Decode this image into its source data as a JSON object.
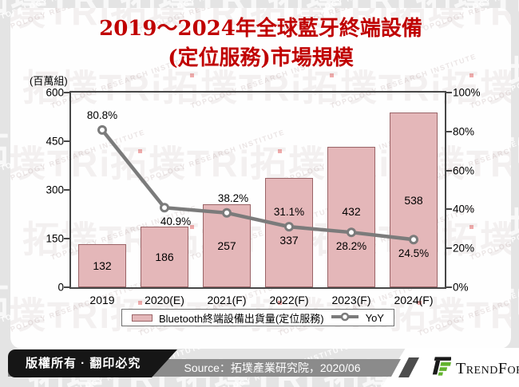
{
  "title": {
    "line1": "2019～2024年全球藍牙終端設備",
    "line2": "(定位服務)市場規模"
  },
  "watermark": {
    "big": "拓墣TRi",
    "sub": "TOPOLOGY RESEARCH INSTITUTE"
  },
  "chart_data": {
    "type": "bar",
    "title": "2019～2024年全球藍牙終端設備(定位服務)市場規模",
    "categories": [
      "2019",
      "2020(E)",
      "2021(F)",
      "2022(F)",
      "2023(F)",
      "2024(F)"
    ],
    "series": [
      {
        "name": "Bluetooth終端設備出貨量(定位服務)",
        "type": "bar",
        "axis": "left",
        "values": [
          132,
          186,
          257,
          337,
          432,
          538
        ]
      },
      {
        "name": "YoY",
        "type": "line",
        "axis": "right",
        "values": [
          80.8,
          40.9,
          38.2,
          31.1,
          28.2,
          24.5
        ],
        "point_labels": [
          "80.8%",
          "40.9%",
          "38.2%",
          "31.1%",
          "28.2%",
          "24.5%"
        ],
        "label_side": [
          "above",
          "below",
          "above",
          "above",
          "below",
          "below"
        ],
        "label_dx": [
          0,
          14,
          8,
          0,
          0,
          0
        ]
      }
    ],
    "left_axis": {
      "unit": "(百萬組)",
      "min": 0,
      "max": 600,
      "ticks": [
        600,
        450,
        300,
        150,
        0
      ]
    },
    "right_axis": {
      "min": 0,
      "max": 100,
      "ticks": [
        "100%",
        "80%",
        "60%",
        "40%",
        "20%",
        "0%"
      ]
    },
    "legend": {
      "bar_label": "Bluetooth終端設備出貨量(定位服務)",
      "line_label": "YoY",
      "position": "bottom"
    },
    "grid": false,
    "value_label_dy": [
      0,
      0,
      0,
      10,
      -7,
      0
    ],
    "colors": {
      "bar_fill": "#e4b7b9",
      "bar_border": "#9a6467",
      "line": "#7b7b7b",
      "marker_fill": "#ffffff",
      "title": "#c00000"
    }
  },
  "footer": {
    "copyright": "版權所有 · 翻印必究",
    "source": "Source：拓墣產業研究院，2020/06",
    "brand": "TrendForce"
  }
}
